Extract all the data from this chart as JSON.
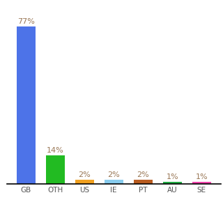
{
  "categories": [
    "GB",
    "OTH",
    "US",
    "IE",
    "PT",
    "AU",
    "SE"
  ],
  "values": [
    77,
    14,
    2,
    2,
    2,
    1,
    1
  ],
  "bar_colors": [
    "#4d73e8",
    "#22bb22",
    "#f0a020",
    "#88ccee",
    "#b85c20",
    "#22aa44",
    "#ee44aa"
  ],
  "label_color": "#997755",
  "background_color": "#ffffff",
  "ylim": [
    0,
    87
  ],
  "bar_width": 0.65,
  "tick_fontsize": 7.5,
  "label_fontsize": 8.0
}
